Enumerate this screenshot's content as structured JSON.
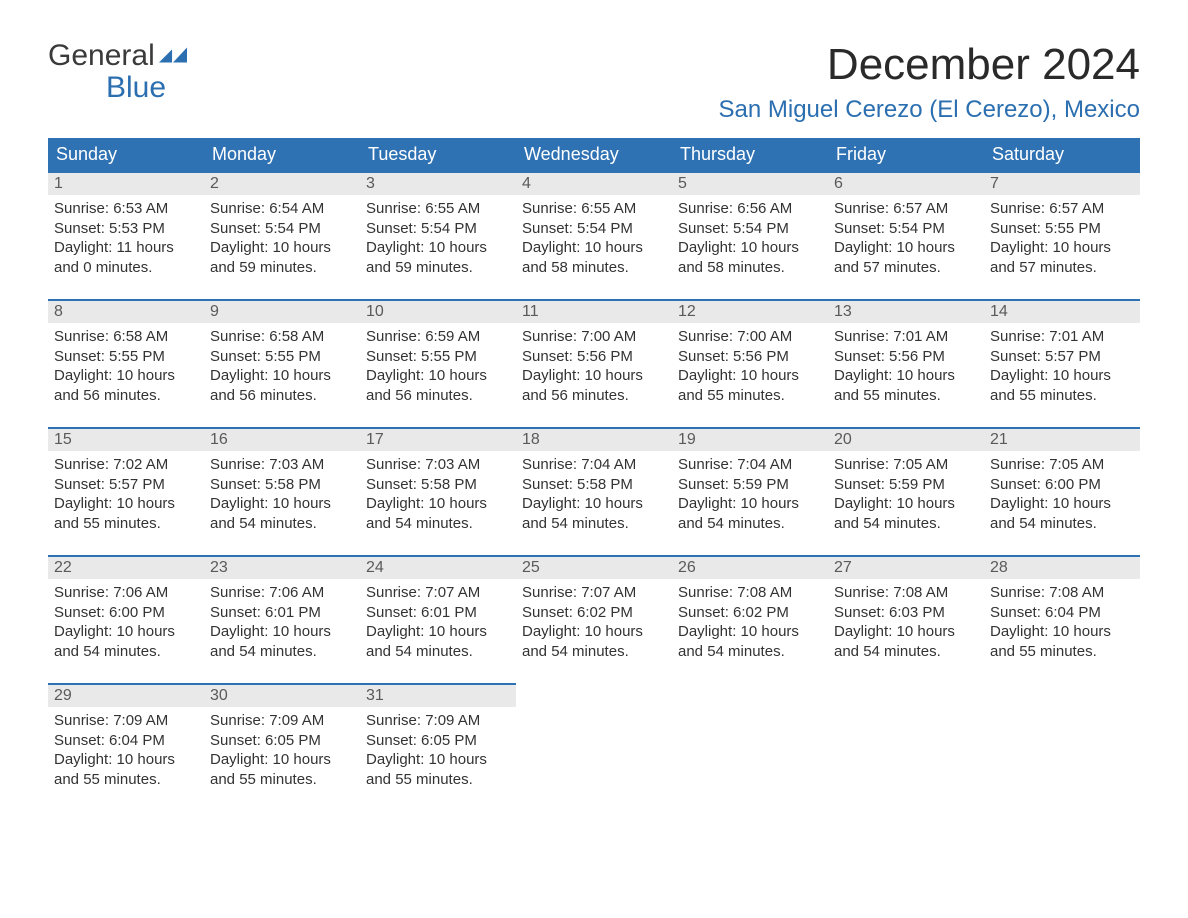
{
  "brand": {
    "word1": "General",
    "word2": "Blue",
    "color": "#2b6fb0"
  },
  "title": "December 2024",
  "subtitle": "San Miguel Cerezo (El Cerezo), Mexico",
  "colors": {
    "header_bg": "#2f72b4",
    "header_text": "#ffffff",
    "daynum_bg": "#e9e9e9",
    "border": "#2f72b4",
    "body_text": "#333333",
    "page_bg": "#ffffff"
  },
  "weekdays": [
    "Sunday",
    "Monday",
    "Tuesday",
    "Wednesday",
    "Thursday",
    "Friday",
    "Saturday"
  ],
  "weeks": [
    [
      {
        "n": "1",
        "sr": "Sunrise: 6:53 AM",
        "ss": "Sunset: 5:53 PM",
        "dl1": "Daylight: 11 hours",
        "dl2": "and 0 minutes."
      },
      {
        "n": "2",
        "sr": "Sunrise: 6:54 AM",
        "ss": "Sunset: 5:54 PM",
        "dl1": "Daylight: 10 hours",
        "dl2": "and 59 minutes."
      },
      {
        "n": "3",
        "sr": "Sunrise: 6:55 AM",
        "ss": "Sunset: 5:54 PM",
        "dl1": "Daylight: 10 hours",
        "dl2": "and 59 minutes."
      },
      {
        "n": "4",
        "sr": "Sunrise: 6:55 AM",
        "ss": "Sunset: 5:54 PM",
        "dl1": "Daylight: 10 hours",
        "dl2": "and 58 minutes."
      },
      {
        "n": "5",
        "sr": "Sunrise: 6:56 AM",
        "ss": "Sunset: 5:54 PM",
        "dl1": "Daylight: 10 hours",
        "dl2": "and 58 minutes."
      },
      {
        "n": "6",
        "sr": "Sunrise: 6:57 AM",
        "ss": "Sunset: 5:54 PM",
        "dl1": "Daylight: 10 hours",
        "dl2": "and 57 minutes."
      },
      {
        "n": "7",
        "sr": "Sunrise: 6:57 AM",
        "ss": "Sunset: 5:55 PM",
        "dl1": "Daylight: 10 hours",
        "dl2": "and 57 minutes."
      }
    ],
    [
      {
        "n": "8",
        "sr": "Sunrise: 6:58 AM",
        "ss": "Sunset: 5:55 PM",
        "dl1": "Daylight: 10 hours",
        "dl2": "and 56 minutes."
      },
      {
        "n": "9",
        "sr": "Sunrise: 6:58 AM",
        "ss": "Sunset: 5:55 PM",
        "dl1": "Daylight: 10 hours",
        "dl2": "and 56 minutes."
      },
      {
        "n": "10",
        "sr": "Sunrise: 6:59 AM",
        "ss": "Sunset: 5:55 PM",
        "dl1": "Daylight: 10 hours",
        "dl2": "and 56 minutes."
      },
      {
        "n": "11",
        "sr": "Sunrise: 7:00 AM",
        "ss": "Sunset: 5:56 PM",
        "dl1": "Daylight: 10 hours",
        "dl2": "and 56 minutes."
      },
      {
        "n": "12",
        "sr": "Sunrise: 7:00 AM",
        "ss": "Sunset: 5:56 PM",
        "dl1": "Daylight: 10 hours",
        "dl2": "and 55 minutes."
      },
      {
        "n": "13",
        "sr": "Sunrise: 7:01 AM",
        "ss": "Sunset: 5:56 PM",
        "dl1": "Daylight: 10 hours",
        "dl2": "and 55 minutes."
      },
      {
        "n": "14",
        "sr": "Sunrise: 7:01 AM",
        "ss": "Sunset: 5:57 PM",
        "dl1": "Daylight: 10 hours",
        "dl2": "and 55 minutes."
      }
    ],
    [
      {
        "n": "15",
        "sr": "Sunrise: 7:02 AM",
        "ss": "Sunset: 5:57 PM",
        "dl1": "Daylight: 10 hours",
        "dl2": "and 55 minutes."
      },
      {
        "n": "16",
        "sr": "Sunrise: 7:03 AM",
        "ss": "Sunset: 5:58 PM",
        "dl1": "Daylight: 10 hours",
        "dl2": "and 54 minutes."
      },
      {
        "n": "17",
        "sr": "Sunrise: 7:03 AM",
        "ss": "Sunset: 5:58 PM",
        "dl1": "Daylight: 10 hours",
        "dl2": "and 54 minutes."
      },
      {
        "n": "18",
        "sr": "Sunrise: 7:04 AM",
        "ss": "Sunset: 5:58 PM",
        "dl1": "Daylight: 10 hours",
        "dl2": "and 54 minutes."
      },
      {
        "n": "19",
        "sr": "Sunrise: 7:04 AM",
        "ss": "Sunset: 5:59 PM",
        "dl1": "Daylight: 10 hours",
        "dl2": "and 54 minutes."
      },
      {
        "n": "20",
        "sr": "Sunrise: 7:05 AM",
        "ss": "Sunset: 5:59 PM",
        "dl1": "Daylight: 10 hours",
        "dl2": "and 54 minutes."
      },
      {
        "n": "21",
        "sr": "Sunrise: 7:05 AM",
        "ss": "Sunset: 6:00 PM",
        "dl1": "Daylight: 10 hours",
        "dl2": "and 54 minutes."
      }
    ],
    [
      {
        "n": "22",
        "sr": "Sunrise: 7:06 AM",
        "ss": "Sunset: 6:00 PM",
        "dl1": "Daylight: 10 hours",
        "dl2": "and 54 minutes."
      },
      {
        "n": "23",
        "sr": "Sunrise: 7:06 AM",
        "ss": "Sunset: 6:01 PM",
        "dl1": "Daylight: 10 hours",
        "dl2": "and 54 minutes."
      },
      {
        "n": "24",
        "sr": "Sunrise: 7:07 AM",
        "ss": "Sunset: 6:01 PM",
        "dl1": "Daylight: 10 hours",
        "dl2": "and 54 minutes."
      },
      {
        "n": "25",
        "sr": "Sunrise: 7:07 AM",
        "ss": "Sunset: 6:02 PM",
        "dl1": "Daylight: 10 hours",
        "dl2": "and 54 minutes."
      },
      {
        "n": "26",
        "sr": "Sunrise: 7:08 AM",
        "ss": "Sunset: 6:02 PM",
        "dl1": "Daylight: 10 hours",
        "dl2": "and 54 minutes."
      },
      {
        "n": "27",
        "sr": "Sunrise: 7:08 AM",
        "ss": "Sunset: 6:03 PM",
        "dl1": "Daylight: 10 hours",
        "dl2": "and 54 minutes."
      },
      {
        "n": "28",
        "sr": "Sunrise: 7:08 AM",
        "ss": "Sunset: 6:04 PM",
        "dl1": "Daylight: 10 hours",
        "dl2": "and 55 minutes."
      }
    ],
    [
      {
        "n": "29",
        "sr": "Sunrise: 7:09 AM",
        "ss": "Sunset: 6:04 PM",
        "dl1": "Daylight: 10 hours",
        "dl2": "and 55 minutes."
      },
      {
        "n": "30",
        "sr": "Sunrise: 7:09 AM",
        "ss": "Sunset: 6:05 PM",
        "dl1": "Daylight: 10 hours",
        "dl2": "and 55 minutes."
      },
      {
        "n": "31",
        "sr": "Sunrise: 7:09 AM",
        "ss": "Sunset: 6:05 PM",
        "dl1": "Daylight: 10 hours",
        "dl2": "and 55 minutes."
      },
      null,
      null,
      null,
      null
    ]
  ]
}
